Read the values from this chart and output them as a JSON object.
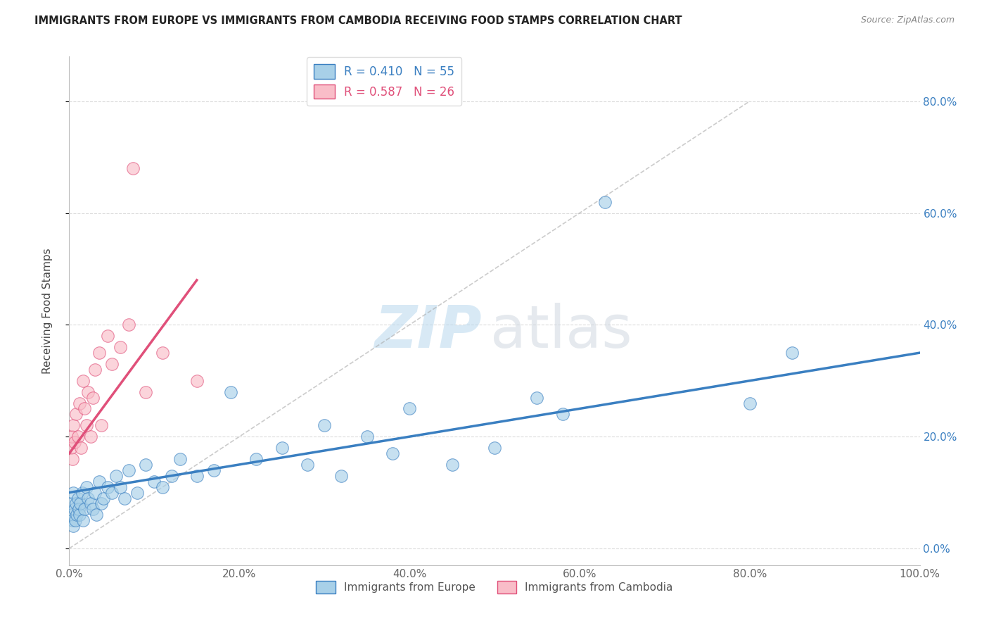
{
  "title": "IMMIGRANTS FROM EUROPE VS IMMIGRANTS FROM CAMBODIA RECEIVING FOOD STAMPS CORRELATION CHART",
  "source": "Source: ZipAtlas.com",
  "ylabel": "Receiving Food Stamps",
  "xlim": [
    0,
    100
  ],
  "ylim": [
    -3,
    88
  ],
  "ytick_labels": [
    "0.0%",
    "20.0%",
    "40.0%",
    "60.0%",
    "80.0%"
  ],
  "ytick_vals": [
    0,
    20,
    40,
    60,
    80
  ],
  "xtick_labels": [
    "0.0%",
    "20.0%",
    "40.0%",
    "60.0%",
    "80.0%",
    "100.0%"
  ],
  "xtick_vals": [
    0,
    20,
    40,
    60,
    80,
    100
  ],
  "legend_europe": "R = 0.410   N = 55",
  "legend_cambodia": "R = 0.587   N = 26",
  "color_europe": "#a8d0e8",
  "color_cambodia": "#f9bdc8",
  "trend_europe_color": "#3a7fc1",
  "trend_cambodia_color": "#e0507a",
  "watermark_zip": "ZIP",
  "watermark_atlas": "atlas",
  "bottom_label_europe": "Immigrants from Europe",
  "bottom_label_cambodia": "Immigrants from Cambodia",
  "europe_x": [
    0.2,
    0.3,
    0.4,
    0.5,
    0.5,
    0.6,
    0.7,
    0.8,
    0.9,
    1.0,
    1.1,
    1.2,
    1.3,
    1.5,
    1.6,
    1.8,
    2.0,
    2.2,
    2.5,
    2.8,
    3.0,
    3.2,
    3.5,
    3.8,
    4.0,
    4.5,
    5.0,
    5.5,
    6.0,
    6.5,
    7.0,
    8.0,
    9.0,
    10.0,
    11.0,
    12.0,
    13.0,
    15.0,
    17.0,
    19.0,
    22.0,
    25.0,
    28.0,
    30.0,
    32.0,
    35.0,
    38.0,
    40.0,
    45.0,
    50.0,
    55.0,
    58.0,
    63.0,
    80.0,
    85.0
  ],
  "europe_y": [
    8.0,
    6.0,
    5.0,
    10.0,
    4.0,
    7.0,
    5.0,
    8.0,
    6.0,
    9.0,
    7.0,
    6.0,
    8.0,
    10.0,
    5.0,
    7.0,
    11.0,
    9.0,
    8.0,
    7.0,
    10.0,
    6.0,
    12.0,
    8.0,
    9.0,
    11.0,
    10.0,
    13.0,
    11.0,
    9.0,
    14.0,
    10.0,
    15.0,
    12.0,
    11.0,
    13.0,
    16.0,
    13.0,
    14.0,
    28.0,
    16.0,
    18.0,
    15.0,
    22.0,
    13.0,
    20.0,
    17.0,
    25.0,
    15.0,
    18.0,
    27.0,
    24.0,
    62.0,
    26.0,
    35.0
  ],
  "cambodia_x": [
    0.2,
    0.3,
    0.4,
    0.5,
    0.6,
    0.8,
    1.0,
    1.2,
    1.4,
    1.6,
    1.8,
    2.0,
    2.2,
    2.5,
    2.8,
    3.0,
    3.5,
    3.8,
    4.5,
    5.0,
    6.0,
    7.0,
    7.5,
    9.0,
    11.0,
    15.0
  ],
  "cambodia_y": [
    18.0,
    20.0,
    16.0,
    22.0,
    19.0,
    24.0,
    20.0,
    26.0,
    18.0,
    30.0,
    25.0,
    22.0,
    28.0,
    20.0,
    27.0,
    32.0,
    35.0,
    22.0,
    38.0,
    33.0,
    36.0,
    40.0,
    68.0,
    28.0,
    35.0,
    30.0
  ],
  "trend_europe_x0": 0,
  "trend_europe_y0": 10.0,
  "trend_europe_x1": 100,
  "trend_europe_y1": 35.0,
  "trend_cambodia_x0": 0,
  "trend_cambodia_y0": 17.0,
  "trend_cambodia_x1": 15,
  "trend_cambodia_y1": 48.0,
  "diag_x0": 0,
  "diag_y0": 0,
  "diag_x1": 80,
  "diag_y1": 80
}
